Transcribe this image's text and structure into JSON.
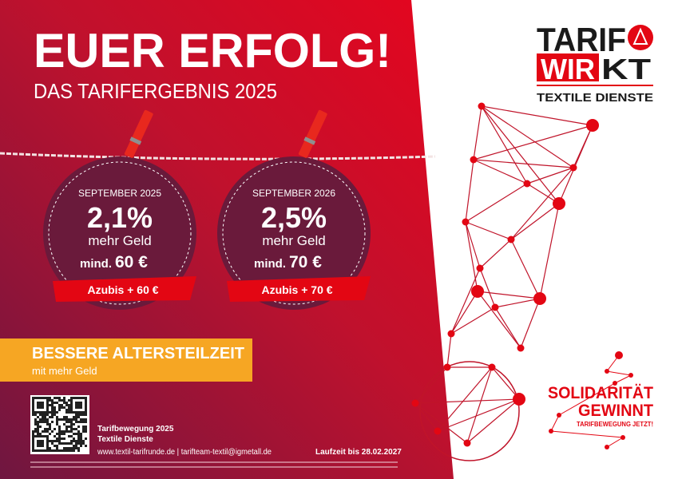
{
  "headline": {
    "title": "EUER ERFOLG!",
    "subtitle": "DAS TARIFERGEBNIS 2025"
  },
  "logo": {
    "line1": "TARIF",
    "wir": "WIR",
    "kt": "KT",
    "tagline": "TEXTILE DIENSTE"
  },
  "offers": [
    {
      "date": "SEPTEMBER 2025",
      "percent": "2,1%",
      "text": "mehr Geld",
      "min_label": "mind.",
      "min_amount": "60 €",
      "azubis": "Azubis + 60 €"
    },
    {
      "date": "SEPTEMBER 2026",
      "percent": "2,5%",
      "text": "mehr Geld",
      "min_label": "mind.",
      "min_amount": "70 €",
      "azubis": "Azubis + 70 €"
    }
  ],
  "banner": {
    "title": "BESSERE ALTERSTEILZEIT",
    "subtitle": "mit mehr Geld"
  },
  "footer": {
    "line1": "Tarifbewegung 2025",
    "line2": "Textile Dienste",
    "links": "www.textil-tarifrunde.de | tarifteam-textil@igmetall.de",
    "duration": "Laufzeit bis 28.02.2027"
  },
  "solidarity": {
    "line1": "SOLIDARITÄT",
    "line2": "GEWINNT",
    "line3": "TARIFBEWEGUNG JETZT!"
  }
}
